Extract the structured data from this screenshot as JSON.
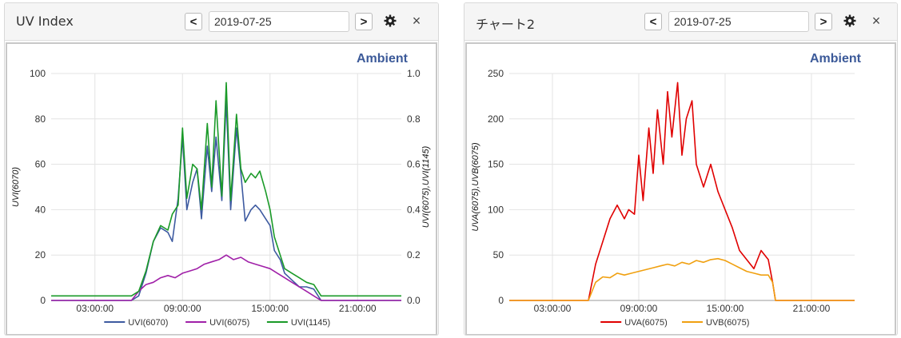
{
  "panels": [
    {
      "title": "UV Index",
      "date": "2019-07-25",
      "prev_label": "<",
      "next_label": ">",
      "settings_icon": "gear-icon",
      "close_label": "×",
      "brand": "Ambient"
    },
    {
      "title": "チャート2",
      "date": "2019-07-25",
      "prev_label": "<",
      "next_label": ">",
      "settings_icon": "gear-icon",
      "close_label": "×",
      "brand": "Ambient"
    }
  ],
  "colors": {
    "brand": "#3c5a99",
    "uvi6070": "#3d5aa0",
    "uvi6075": "#a020a8",
    "uvi1145": "#1a9a28",
    "uva": "#e00000",
    "uvb": "#f0a010"
  },
  "chart_data": [
    {
      "type": "line",
      "x_unit": "hours",
      "x_range": [
        0,
        24
      ],
      "x_ticks": [
        3,
        9,
        15,
        21
      ],
      "x_tick_labels": [
        "03:00:00",
        "09:00:00",
        "15:00:00",
        "21:00:00"
      ],
      "left_axis": {
        "label": "UVI(6070)",
        "ylim": [
          0,
          100
        ],
        "ticks": [
          0,
          20,
          40,
          60,
          80,
          100
        ]
      },
      "right_axis": {
        "label": "UVI(6075),UVI(1145)",
        "ylim": [
          0,
          1
        ],
        "ticks": [
          "0.0",
          "0.2",
          "0.4",
          "0.6",
          "0.8",
          "1.0"
        ]
      },
      "grid": true,
      "legend_position": "bottom",
      "series": [
        {
          "name": "UVI(6070)",
          "axis": "left",
          "color": "#3d5aa0",
          "x": [
            0,
            5.5,
            6.0,
            6.5,
            7.0,
            7.5,
            8.0,
            8.3,
            8.7,
            9.0,
            9.3,
            9.7,
            10.0,
            10.3,
            10.7,
            11.0,
            11.3,
            11.7,
            12.0,
            12.3,
            12.7,
            13.0,
            13.3,
            13.7,
            14.0,
            14.3,
            14.7,
            15.0,
            15.3,
            15.7,
            16.0,
            16.5,
            17.0,
            17.5,
            18.0,
            18.5,
            24
          ],
          "y": [
            0,
            0,
            2,
            12,
            26,
            32,
            30,
            26,
            45,
            72,
            40,
            52,
            58,
            36,
            68,
            48,
            72,
            44,
            88,
            40,
            76,
            56,
            35,
            40,
            42,
            40,
            36,
            33,
            22,
            18,
            12,
            9,
            6,
            6,
            5,
            0,
            0
          ]
        },
        {
          "name": "UVI(6075)",
          "axis": "right",
          "color": "#a020a8",
          "x": [
            0,
            5.5,
            6.0,
            6.5,
            7.0,
            7.5,
            8.0,
            8.5,
            9.0,
            9.5,
            10.0,
            10.5,
            11.0,
            11.5,
            12.0,
            12.5,
            13.0,
            13.5,
            14.0,
            14.5,
            15.0,
            15.5,
            16.0,
            16.5,
            17.0,
            17.5,
            18.0,
            18.5,
            24
          ],
          "y": [
            0,
            0,
            0.04,
            0.07,
            0.08,
            0.1,
            0.11,
            0.1,
            0.12,
            0.13,
            0.14,
            0.16,
            0.17,
            0.18,
            0.2,
            0.18,
            0.19,
            0.17,
            0.16,
            0.15,
            0.14,
            0.12,
            0.1,
            0.08,
            0.06,
            0.04,
            0.02,
            0,
            0
          ]
        },
        {
          "name": "UVI(1145)",
          "axis": "right",
          "color": "#1a9a28",
          "x": [
            0,
            5.5,
            6.0,
            6.5,
            7.0,
            7.5,
            8.0,
            8.3,
            8.7,
            9.0,
            9.3,
            9.7,
            10.0,
            10.3,
            10.7,
            11.0,
            11.3,
            11.7,
            12.0,
            12.3,
            12.7,
            13.0,
            13.3,
            13.7,
            14.0,
            14.3,
            14.7,
            15.0,
            15.3,
            15.7,
            16.0,
            16.5,
            17.0,
            17.5,
            18.0,
            18.5,
            19.0,
            24
          ],
          "y": [
            0.02,
            0.02,
            0.04,
            0.13,
            0.26,
            0.33,
            0.31,
            0.38,
            0.42,
            0.76,
            0.45,
            0.6,
            0.58,
            0.4,
            0.78,
            0.5,
            0.88,
            0.46,
            0.96,
            0.44,
            0.82,
            0.58,
            0.52,
            0.56,
            0.54,
            0.57,
            0.48,
            0.4,
            0.28,
            0.2,
            0.14,
            0.12,
            0.1,
            0.08,
            0.07,
            0.02,
            0.02,
            0.02
          ]
        }
      ]
    },
    {
      "type": "line",
      "x_unit": "hours",
      "x_range": [
        0,
        24
      ],
      "x_ticks": [
        3,
        9,
        15,
        21
      ],
      "x_tick_labels": [
        "03:00:00",
        "09:00:00",
        "15:00:00",
        "21:00:00"
      ],
      "left_axis": {
        "label": "UVA(6075),UVB(6075)",
        "ylim": [
          0,
          250
        ],
        "ticks": [
          0,
          50,
          100,
          150,
          200,
          250
        ]
      },
      "grid": true,
      "legend_position": "bottom",
      "series": [
        {
          "name": "UVA(6075)",
          "axis": "left",
          "color": "#e00000",
          "x": [
            0,
            5.5,
            6.0,
            6.5,
            7.0,
            7.5,
            8.0,
            8.3,
            8.7,
            9.0,
            9.3,
            9.7,
            10.0,
            10.3,
            10.7,
            11.0,
            11.3,
            11.7,
            12.0,
            12.3,
            12.7,
            13.0,
            13.5,
            14.0,
            14.5,
            15.0,
            15.5,
            16.0,
            16.5,
            17.0,
            17.5,
            18.0,
            18.3,
            18.5,
            24
          ],
          "y": [
            0,
            0,
            40,
            65,
            90,
            105,
            90,
            100,
            95,
            160,
            110,
            190,
            140,
            210,
            150,
            230,
            180,
            240,
            160,
            200,
            220,
            150,
            125,
            150,
            120,
            100,
            80,
            55,
            45,
            35,
            55,
            45,
            20,
            0,
            0
          ]
        },
        {
          "name": "UVB(6075)",
          "axis": "left",
          "color": "#f0a010",
          "x": [
            0,
            5.5,
            6.0,
            6.5,
            7.0,
            7.5,
            8.0,
            8.5,
            9.0,
            9.5,
            10.0,
            10.5,
            11.0,
            11.5,
            12.0,
            12.5,
            13.0,
            13.5,
            14.0,
            14.5,
            15.0,
            15.5,
            16.0,
            16.5,
            17.0,
            17.5,
            18.0,
            18.3,
            18.5,
            24
          ],
          "y": [
            0,
            0,
            20,
            26,
            25,
            30,
            28,
            30,
            32,
            34,
            36,
            38,
            40,
            38,
            42,
            40,
            44,
            42,
            45,
            46,
            44,
            40,
            36,
            32,
            30,
            28,
            28,
            20,
            0,
            0
          ]
        }
      ]
    }
  ]
}
